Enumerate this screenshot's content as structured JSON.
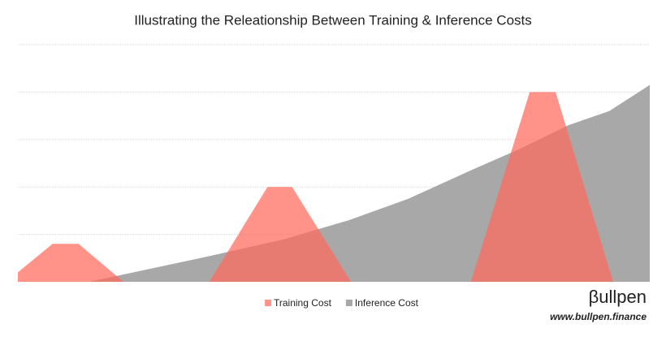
{
  "chart_data": {
    "type": "area",
    "title": "Illustrating the Releationship Between Training & Inference Costs",
    "xlim": [
      0,
      100
    ],
    "ylim": [
      0,
      5
    ],
    "yticks": [
      0,
      1,
      2,
      3,
      4,
      5
    ],
    "grid": true,
    "legend": "bottom",
    "series": [
      {
        "name": "Inference Cost",
        "color": "#a8a8a8",
        "opacity": 1,
        "x": [
          0,
          11.3,
          30.6,
          42.2,
          52.4,
          61.8,
          71.7,
          79.4,
          87.1,
          93.6,
          100
        ],
        "values": [
          0,
          0,
          0.55,
          0.9,
          1.3,
          1.75,
          2.35,
          2.8,
          3.3,
          3.6,
          4.15
        ]
      },
      {
        "name": "Training Cost",
        "color": "#ff6a5c",
        "opacity": 0.72,
        "x": [
          0,
          5.5,
          9.6,
          16.7,
          30.3,
          39.5,
          43.4,
          52.7,
          71.7,
          81,
          85.1,
          94.2,
          100
        ],
        "values": [
          0.2,
          0.8,
          0.8,
          0,
          0,
          2,
          2,
          0,
          0,
          4,
          4,
          0,
          0
        ]
      }
    ],
    "legend_order": [
      1,
      0
    ],
    "brand": "βullpen",
    "website": "www.bullpen.finance"
  }
}
